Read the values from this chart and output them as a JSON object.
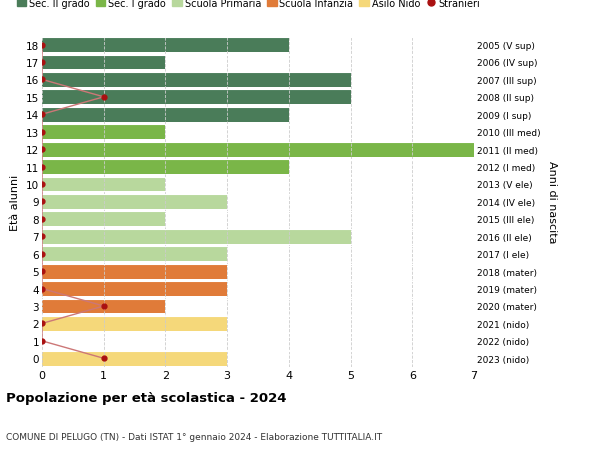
{
  "ages": [
    18,
    17,
    16,
    15,
    14,
    13,
    12,
    11,
    10,
    9,
    8,
    7,
    6,
    5,
    4,
    3,
    2,
    1,
    0
  ],
  "right_labels": [
    "2005 (V sup)",
    "2006 (IV sup)",
    "2007 (III sup)",
    "2008 (II sup)",
    "2009 (I sup)",
    "2010 (III med)",
    "2011 (II med)",
    "2012 (I med)",
    "2013 (V ele)",
    "2014 (IV ele)",
    "2015 (III ele)",
    "2016 (II ele)",
    "2017 (I ele)",
    "2018 (mater)",
    "2019 (mater)",
    "2020 (mater)",
    "2021 (nido)",
    "2022 (nido)",
    "2023 (nido)"
  ],
  "bar_values": [
    4,
    2,
    5,
    5,
    4,
    2,
    7,
    4,
    2,
    3,
    2,
    5,
    3,
    3,
    3,
    2,
    3,
    0,
    3
  ],
  "bar_colors": [
    "#4a7c59",
    "#4a7c59",
    "#4a7c59",
    "#4a7c59",
    "#4a7c59",
    "#7ab648",
    "#7ab648",
    "#7ab648",
    "#b8d89d",
    "#b8d89d",
    "#b8d89d",
    "#b8d89d",
    "#b8d89d",
    "#e07b39",
    "#e07b39",
    "#e07b39",
    "#f5d87a",
    "#f5d87a",
    "#f5d87a"
  ],
  "stranieri_values": [
    0,
    0,
    0,
    1,
    0,
    0,
    0,
    0,
    0,
    0,
    0,
    0,
    0,
    0,
    0,
    1,
    0,
    0,
    1
  ],
  "legend_labels": [
    "Sec. II grado",
    "Sec. I grado",
    "Scuola Primaria",
    "Scuola Infanzia",
    "Asilo Nido",
    "Stranieri"
  ],
  "legend_colors": [
    "#4a7c59",
    "#7ab648",
    "#b8d89d",
    "#e07b39",
    "#f5d87a",
    "#cc2222"
  ],
  "title": "Popolazione per età scolastica - 2024",
  "subtitle": "COMUNE DI PELUGO (TN) - Dati ISTAT 1° gennaio 2024 - Elaborazione TUTTITALIA.IT",
  "ylabel_left": "Età alunni",
  "ylabel_right": "Anni di nascita",
  "xlim": [
    0,
    7
  ],
  "background_color": "#ffffff",
  "grid_color": "#cccccc",
  "stranieri_color": "#aa1111",
  "stranieri_line_color": "#cc7777"
}
